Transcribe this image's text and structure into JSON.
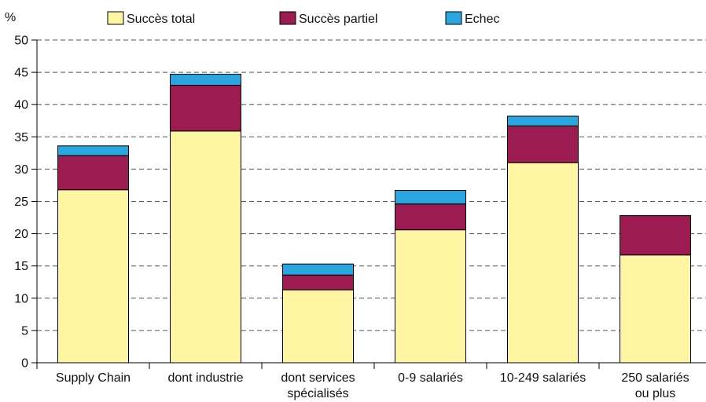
{
  "chart_data": {
    "type": "bar",
    "stacked": true,
    "unit": "%",
    "categories": [
      [
        "Supply Chain"
      ],
      [
        "dont industrie"
      ],
      [
        "dont services",
        "spécialisés"
      ],
      [
        "0-9 salariés"
      ],
      [
        "10-249 salariés"
      ],
      [
        "250 salariés",
        "ou plus"
      ]
    ],
    "series": [
      {
        "name": "Succès total",
        "color": "#FFF5A3",
        "values": [
          26.8,
          35.9,
          11.3,
          20.6,
          31.0,
          16.7
        ]
      },
      {
        "name": "Succès partiel",
        "color": "#9B1B52",
        "values": [
          5.3,
          7.1,
          2.3,
          4.0,
          5.7,
          6.1
        ]
      },
      {
        "name": "Echec",
        "color": "#2AA7E1",
        "values": [
          1.5,
          1.7,
          1.7,
          2.1,
          1.5,
          0.0
        ]
      }
    ],
    "ylim": [
      0,
      50
    ],
    "yticks": [
      0,
      5,
      10,
      15,
      20,
      25,
      30,
      35,
      40,
      45,
      50
    ],
    "grid": "horizontal-dashed",
    "legend_position": "top"
  }
}
